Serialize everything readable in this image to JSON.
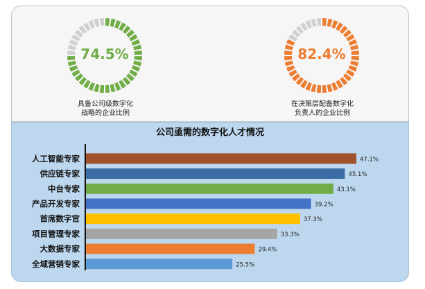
{
  "gauges": [
    {
      "value_label": "74.5%",
      "value": 74.5,
      "caption_line1": "具备公司级数字化",
      "caption_line2": "战略的企业比例",
      "color": "#70ad47"
    },
    {
      "value_label": "82.4%",
      "value": 82.4,
      "caption_line1": "在决策层配备数字化",
      "caption_line2": "负责人的企业比例",
      "color": "#ed7d31"
    }
  ],
  "chart_data": {
    "type": "bar",
    "orientation": "horizontal",
    "title": "公司亟需的数字化人才情况",
    "categories": [
      "人工智能专家",
      "供应链专家",
      "中台专家",
      "产品开发专家",
      "首席数字官",
      "项目管理专家",
      "大数据专家",
      "全域营销专家"
    ],
    "values": [
      47.1,
      45.1,
      43.1,
      39.2,
      37.3,
      33.3,
      29.4,
      25.5
    ],
    "value_labels": [
      "47.1%",
      "45.1%",
      "43.1%",
      "39.2%",
      "37.3%",
      "33.3%",
      "29.4%",
      "25.5%"
    ],
    "colors": [
      "#a0522d",
      "#3a6ea5",
      "#70ad47",
      "#4472c4",
      "#ffc000",
      "#a5a5a5",
      "#ed7d31",
      "#5b9bd5"
    ],
    "xlim": [
      0,
      50
    ],
    "grid": false,
    "legend": "none"
  }
}
